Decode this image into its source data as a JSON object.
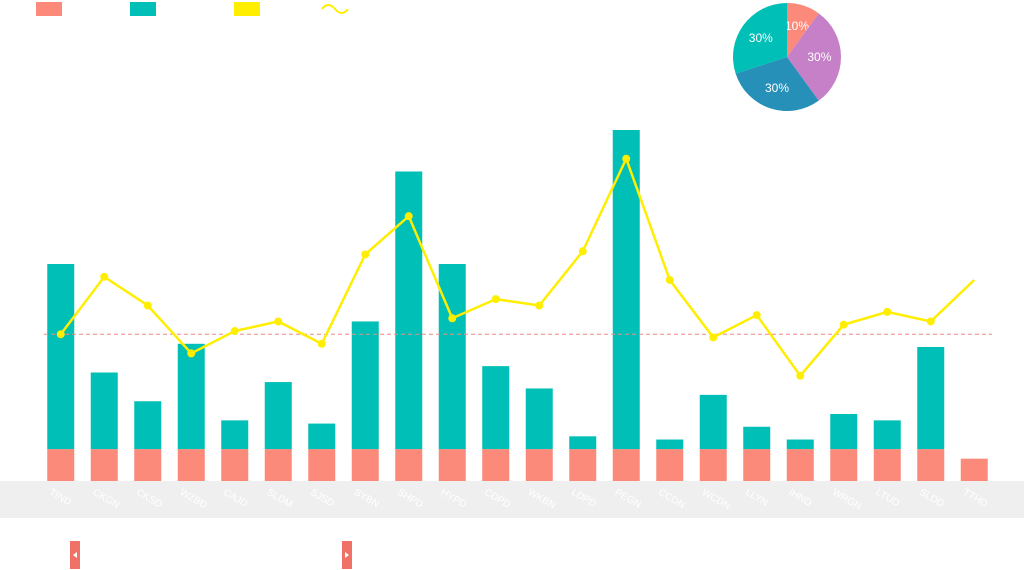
{
  "colors": {
    "base": "#fc8a7a",
    "main": "#00bfb6",
    "line": "#ffee00",
    "pie_violet": "#c580c8",
    "pie_blue": "#2690b8",
    "reference": "#f08a80",
    "band": "#efefef",
    "handle": "#f07266"
  },
  "legend": [
    {
      "name": "",
      "icon": "rect-swatch",
      "color": "#fc8a7a"
    },
    {
      "name": "",
      "icon": "rect-swatch",
      "color": "#00bfb6"
    },
    {
      "name": "",
      "icon": "rect-swatch",
      "color": "#ffee00"
    },
    {
      "name": "",
      "icon": "line-swatch",
      "color": "#ffee00"
    }
  ],
  "chart_data": [
    {
      "type": "bar",
      "stacked": true,
      "categories": [
        "TIND",
        "CKGN",
        "CKSD",
        "WZBD",
        "CAJD",
        "SLDM",
        "SJSD",
        "SYBN",
        "SHPD",
        "HYPD",
        "CDPD",
        "WKBN",
        "LDPD",
        "PEGN",
        "CCDN",
        "WCDN",
        "LLYN",
        "IHND",
        "WRGN",
        "LTUD",
        "SLDD",
        "TTHD"
      ],
      "series": [
        {
          "name": "",
          "values": [
            10,
            10,
            10,
            10,
            10,
            10,
            10,
            10,
            10,
            10,
            10,
            10,
            10,
            10,
            10,
            10,
            10,
            10,
            10,
            10,
            10,
            7
          ]
        },
        {
          "name": "",
          "values": [
            58,
            24,
            15,
            33,
            9,
            21,
            8,
            40,
            87,
            58,
            26,
            19,
            4,
            100,
            3,
            17,
            7,
            3,
            11,
            9,
            32,
            0
          ]
        }
      ],
      "line": {
        "name": "",
        "values": [
          46,
          64,
          55,
          40,
          47,
          50,
          43,
          71,
          83,
          51,
          57,
          55,
          72,
          101,
          63,
          45,
          52,
          33,
          49,
          53,
          50,
          63
        ]
      },
      "reference_line": 46,
      "ylim": [
        0,
        110
      ],
      "grid": false
    },
    {
      "type": "pie",
      "slices": [
        {
          "label": "10%",
          "value": 10,
          "color": "#fc8a7a"
        },
        {
          "label": "30%",
          "value": 30,
          "color": "#c580c8"
        },
        {
          "label": "30%",
          "value": 30,
          "color": "#2690b8"
        },
        {
          "label": "30%",
          "value": 30,
          "color": "#00bfb6"
        }
      ]
    }
  ],
  "zoom": {
    "start": 0,
    "end": 1,
    "start_icon": "left-arrow-icon",
    "end_icon": "right-arrow-icon"
  }
}
